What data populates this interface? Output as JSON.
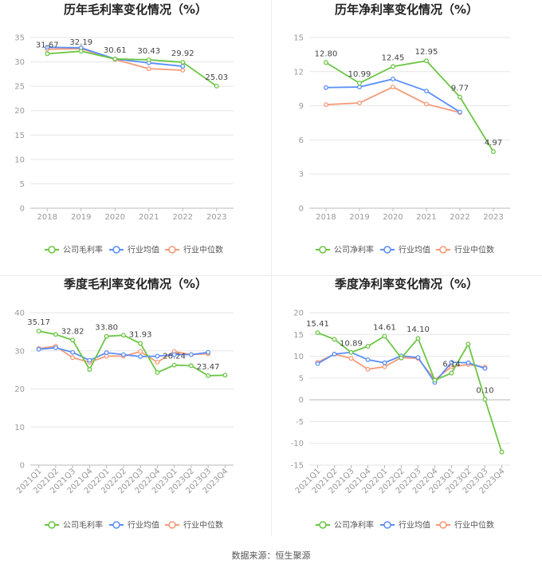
{
  "source": "数据来源：恒生聚源",
  "legend_common": [
    "行业均值",
    "行业中位数"
  ],
  "colors": {
    "company": "#6cc644",
    "avg": "#5b8ff9",
    "median": "#f59a78"
  },
  "chart_data": [
    {
      "type": "line",
      "title": "历年毛利率变化情况（%）",
      "categories": [
        "2018",
        "2019",
        "2020",
        "2021",
        "2022",
        "2023"
      ],
      "ylim": [
        0,
        35
      ],
      "yticks": [
        0,
        5,
        10,
        15,
        20,
        25,
        30,
        35
      ],
      "series": [
        {
          "name": "公司毛利率",
          "values": [
            31.67,
            32.19,
            30.61,
            30.43,
            29.92,
            25.03
          ]
        },
        {
          "name": "行业均值",
          "values": [
            33.0,
            32.9,
            30.6,
            29.8,
            29.1,
            null
          ]
        },
        {
          "name": "行业中位数",
          "values": [
            32.6,
            32.7,
            30.5,
            28.6,
            28.3,
            null
          ]
        }
      ],
      "labels": [
        "31.67",
        "32.19",
        "30.61",
        "30.43",
        "29.92",
        "25.03"
      ]
    },
    {
      "type": "line",
      "title": "历年净利率变化情况（%）",
      "categories": [
        "2018",
        "2019",
        "2020",
        "2021",
        "2022",
        "2023"
      ],
      "ylim": [
        0,
        15
      ],
      "yticks": [
        0,
        3,
        6,
        9,
        12,
        15
      ],
      "series": [
        {
          "name": "公司净利率",
          "values": [
            12.8,
            10.99,
            12.45,
            12.95,
            9.77,
            4.97
          ]
        },
        {
          "name": "行业均值",
          "values": [
            10.6,
            10.65,
            11.35,
            10.3,
            8.45,
            null
          ]
        },
        {
          "name": "行业中位数",
          "values": [
            9.1,
            9.25,
            10.65,
            9.15,
            8.4,
            null
          ]
        }
      ],
      "labels": [
        "12.80",
        "10.99",
        "12.45",
        "12.95",
        "9.77",
        "4.97"
      ]
    },
    {
      "type": "line",
      "title": "季度毛利率变化情况（%）",
      "categories": [
        "2021Q1",
        "2021Q2",
        "2021Q3",
        "2021Q4",
        "2022Q1",
        "2022Q2",
        "2022Q3",
        "2022Q4",
        "2023Q1",
        "2023Q2",
        "2023Q3",
        "2023Q4"
      ],
      "ylim": [
        0,
        40
      ],
      "yticks": [
        0,
        10,
        20,
        30,
        40
      ],
      "series": [
        {
          "name": "公司毛利率",
          "values": [
            35.17,
            34.3,
            32.82,
            25.1,
            33.8,
            34.1,
            31.93,
            24.3,
            26.24,
            26.1,
            23.47,
            23.6
          ]
        },
        {
          "name": "行业均值",
          "values": [
            30.4,
            30.8,
            29.6,
            27.5,
            29.5,
            29.0,
            28.5,
            28.6,
            29.0,
            29.0,
            29.6,
            null
          ]
        },
        {
          "name": "行业中位数",
          "values": [
            30.6,
            31.2,
            28.2,
            27.0,
            28.6,
            28.6,
            29.8,
            27.0,
            29.8,
            29.0,
            29.2,
            null
          ]
        }
      ],
      "labels": [
        "35.17",
        "",
        "32.82",
        "",
        "33.80",
        "",
        "31.93",
        "",
        "26.24",
        "",
        "23.47",
        ""
      ]
    },
    {
      "type": "line",
      "title": "季度净利率变化情况（%）",
      "categories": [
        "2021Q1",
        "2021Q2",
        "2021Q3",
        "2021Q4",
        "2022Q1",
        "2022Q2",
        "2022Q3",
        "2022Q4",
        "2023Q1",
        "2023Q2",
        "2023Q3",
        "2023Q4"
      ],
      "ylim": [
        -15,
        20
      ],
      "yticks": [
        -15,
        -10,
        -5,
        0,
        5,
        10,
        15,
        20
      ],
      "series": [
        {
          "name": "公司净利率",
          "values": [
            15.41,
            13.9,
            10.89,
            12.3,
            14.61,
            9.6,
            14.1,
            4.5,
            6.14,
            12.8,
            0.1,
            -12.0
          ]
        },
        {
          "name": "行业均值",
          "values": [
            8.3,
            10.5,
            10.9,
            9.2,
            8.5,
            10.1,
            9.7,
            4.0,
            8.6,
            8.5,
            7.2,
            null
          ]
        },
        {
          "name": "行业中位数",
          "values": [
            8.6,
            10.5,
            9.5,
            7.0,
            7.6,
            9.7,
            9.5,
            4.6,
            7.6,
            8.1,
            7.5,
            null
          ]
        }
      ],
      "labels": [
        "15.41",
        "",
        "10.89",
        "",
        "14.61",
        "",
        "14.10",
        "",
        "6.14",
        "",
        "0.10",
        ""
      ]
    }
  ]
}
